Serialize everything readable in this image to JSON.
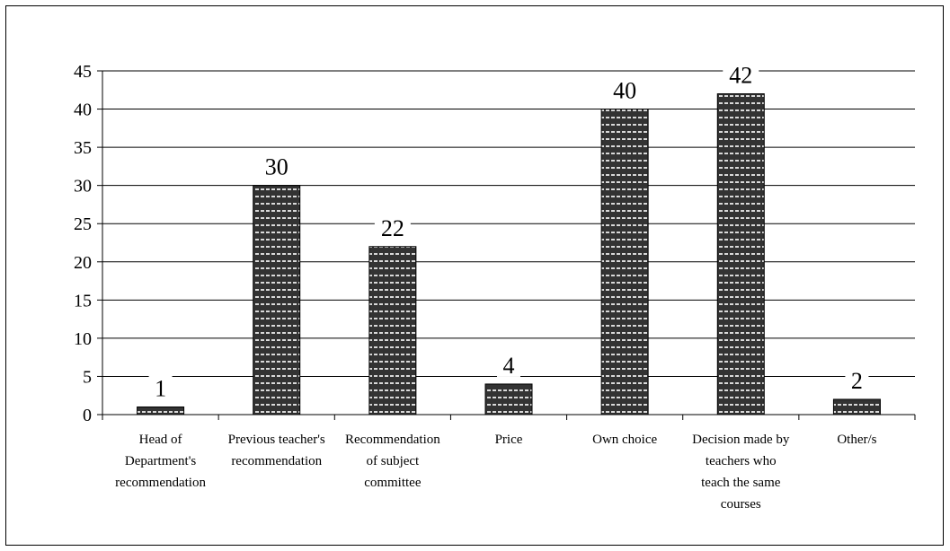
{
  "chart_data": {
    "type": "bar",
    "categories": [
      [
        "Head of",
        "Department's",
        "recommendation"
      ],
      [
        "Previous teacher's",
        "recommendation"
      ],
      [
        "Recommendation",
        "of subject",
        "committee"
      ],
      [
        "Price"
      ],
      [
        "Own choice"
      ],
      [
        "Decision made by",
        "teachers who",
        "teach the same",
        "courses"
      ],
      [
        "Other/s"
      ]
    ],
    "values": [
      1,
      30,
      22,
      4,
      40,
      42,
      2
    ],
    "data_labels": [
      "1",
      "30",
      "22",
      "4",
      "40",
      "42",
      "2"
    ],
    "ylim": [
      0,
      45
    ],
    "yticks": [
      0,
      5,
      10,
      15,
      20,
      25,
      30,
      35,
      40,
      45
    ],
    "grid": true,
    "bar_color": "#333333",
    "bar_pattern_color": "#d9d9d9",
    "title": "",
    "xlabel": "",
    "ylabel": ""
  }
}
